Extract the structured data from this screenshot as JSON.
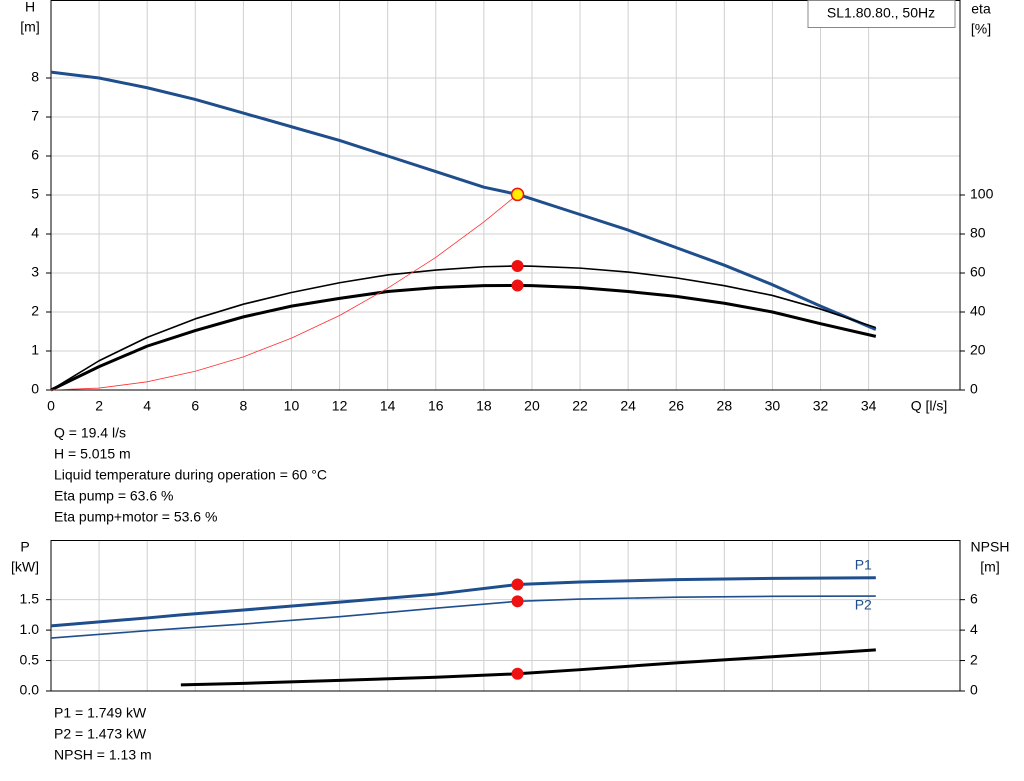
{
  "chart_data": [
    {
      "type": "line",
      "title": "SL1.80.80., 50Hz",
      "ylabel": [
        "H",
        "[m]"
      ],
      "y2label": [
        "eta",
        "[%]"
      ],
      "xlabel": "Q [l/s]",
      "x": [
        0,
        2,
        4,
        6,
        8,
        10,
        12,
        14,
        16,
        18,
        19.4,
        20,
        22,
        24,
        26,
        28,
        30,
        32,
        34.3
      ],
      "series": [
        {
          "color": "#1f4e8c",
          "width": 3,
          "axis": "y",
          "values": [
            8.15,
            8.0,
            7.75,
            7.45,
            7.1,
            6.75,
            6.4,
            6.0,
            5.6,
            5.2,
            5.015,
            4.9,
            4.5,
            4.1,
            3.65,
            3.2,
            2.7,
            2.15,
            1.55
          ]
        },
        {
          "color": "#000000",
          "width": 1.6,
          "axis": "y2",
          "values": [
            0,
            15,
            27,
            36.5,
            44,
            50,
            55,
            59,
            61.5,
            63.2,
            63.6,
            63.5,
            62.5,
            60.5,
            57.5,
            53.5,
            48.5,
            41.5,
            32
          ]
        },
        {
          "color": "#000000",
          "width": 3,
          "axis": "y2",
          "values": [
            0,
            12,
            22.5,
            30.5,
            37.5,
            43,
            47,
            50.5,
            52.5,
            53.5,
            53.6,
            53.5,
            52.5,
            50.5,
            48,
            44.5,
            40,
            34,
            27.5
          ]
        },
        {
          "color": "#ff3030",
          "width": 0.8,
          "axis": "y",
          "values": [
            0,
            0.05,
            0.21,
            0.48,
            0.85,
            1.33,
            1.91,
            2.61,
            3.4,
            4.31,
            5.015,
            null,
            null,
            null,
            null,
            null,
            null,
            null,
            null
          ]
        }
      ],
      "markers": [
        {
          "x": 19.4,
          "y": 63.6,
          "axis": "y2",
          "color": "#ee1111"
        },
        {
          "x": 19.4,
          "y": 53.6,
          "axis": "y2",
          "color": "#ee1111"
        },
        {
          "x": 19.4,
          "y": 5.015,
          "axis": "y",
          "color": "#ffee00",
          "stroke": "#ee1111"
        }
      ],
      "xlim": [
        0,
        37.8
      ],
      "xticks": [
        0,
        2,
        4,
        6,
        8,
        10,
        12,
        14,
        16,
        18,
        20,
        22,
        24,
        26,
        28,
        30,
        32,
        34
      ],
      "ylim": [
        0,
        10
      ],
      "yticks": [
        0,
        1,
        2,
        3,
        4,
        5,
        6,
        7,
        8
      ],
      "y2lim": [
        0,
        200
      ],
      "y2ticks": [
        0,
        20,
        40,
        60,
        80,
        100
      ],
      "grid": true,
      "show_xtick_labels": true,
      "notes": [
        "Q = 19.4 l/s",
        "H = 5.015 m",
        "Liquid temperature during operation = 60 °C",
        "Eta pump = 63.6 %",
        "Eta pump+motor = 53.6 %"
      ]
    },
    {
      "type": "line",
      "ylabel": [
        "P",
        "[kW]"
      ],
      "y2label": [
        "NPSH",
        "[m]"
      ],
      "x": [
        0,
        4,
        5.4,
        8,
        12,
        16,
        19.4,
        22,
        26,
        30,
        34.3
      ],
      "series": [
        {
          "name": "P1",
          "color": "#1f4e8c",
          "width": 3,
          "axis": "y",
          "values": [
            1.07,
            1.2,
            1.25,
            1.33,
            1.46,
            1.59,
            1.749,
            1.79,
            1.83,
            1.85,
            1.86
          ]
        },
        {
          "name": "P2",
          "color": "#1f4e8c",
          "width": 1.6,
          "axis": "y",
          "values": [
            0.87,
            0.99,
            1.03,
            1.1,
            1.22,
            1.36,
            1.473,
            1.51,
            1.54,
            1.555,
            1.56
          ]
        },
        {
          "color": "#000000",
          "width": 3,
          "axis": "y2",
          "values": [
            null,
            null,
            0.4,
            0.5,
            0.7,
            0.9,
            1.13,
            1.4,
            1.85,
            2.25,
            2.7
          ]
        }
      ],
      "markers": [
        {
          "x": 19.4,
          "y": 1.749,
          "axis": "y",
          "color": "#ee1111"
        },
        {
          "x": 19.4,
          "y": 1.473,
          "axis": "y",
          "color": "#ee1111"
        },
        {
          "x": 19.4,
          "y": 1.13,
          "axis": "y2",
          "color": "#ee1111"
        }
      ],
      "xlim": [
        0,
        37.8
      ],
      "xticks": [
        0,
        2,
        4,
        6,
        8,
        10,
        12,
        14,
        16,
        18,
        20,
        22,
        24,
        26,
        28,
        30,
        32,
        34
      ],
      "ylim": [
        0,
        2.48
      ],
      "yticks": [
        {
          "value": 0,
          "label": "0.0"
        },
        0.5,
        {
          "value": 1,
          "label": "1.0"
        },
        1.5
      ],
      "y2lim": [
        0,
        9.92
      ],
      "y2ticks": [
        0,
        2,
        4,
        6
      ],
      "grid": true,
      "show_xtick_labels": false,
      "notes": [
        "P1 = 1.749 kW",
        "P2 = 1.473 kW",
        "NPSH = 1.13 m"
      ]
    }
  ]
}
